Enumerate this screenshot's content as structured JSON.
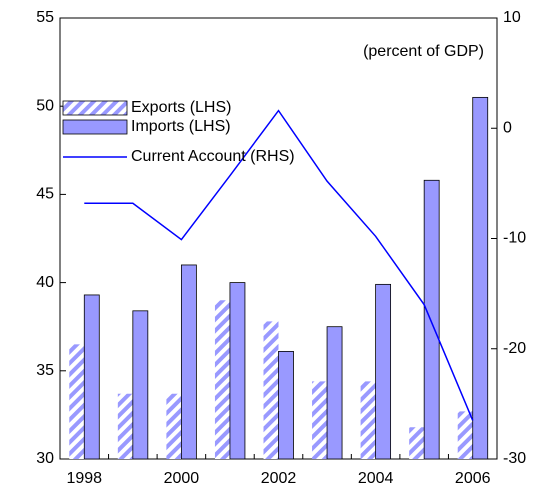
{
  "chart_data": {
    "type": "bar",
    "annotation": "(percent of GDP)",
    "categories": [
      "1998",
      null,
      "2000",
      null,
      "2002",
      null,
      "2004",
      null,
      "2006"
    ],
    "series": [
      {
        "name": "Exports (LHS)",
        "type": "bar",
        "color": "#9999ff",
        "pattern": "hatch",
        "values": [
          36.5,
          33.7,
          33.7,
          39.0,
          37.8,
          34.4,
          34.4,
          31.8,
          32.7
        ]
      },
      {
        "name": "Imports (LHS)",
        "type": "bar",
        "color": "#9999ff",
        "values": [
          39.3,
          38.4,
          41.0,
          40.0,
          36.1,
          37.5,
          39.9,
          45.8,
          50.5
        ]
      },
      {
        "name": "Current Account (RHS)",
        "type": "line",
        "axis": "y2",
        "color": "#0000ff",
        "values": [
          -6.8,
          -6.8,
          -10.1,
          -4.3,
          1.6,
          -4.8,
          -9.8,
          -16.0,
          -26.5
        ]
      }
    ],
    "ylim": [
      30,
      55
    ],
    "yticks": [
      30,
      35,
      40,
      45,
      50,
      55
    ],
    "y2lim": [
      -30,
      10
    ],
    "y2ticks": [
      -30,
      -20,
      -10,
      0,
      10
    ],
    "legend": "upper left",
    "grid": false
  }
}
